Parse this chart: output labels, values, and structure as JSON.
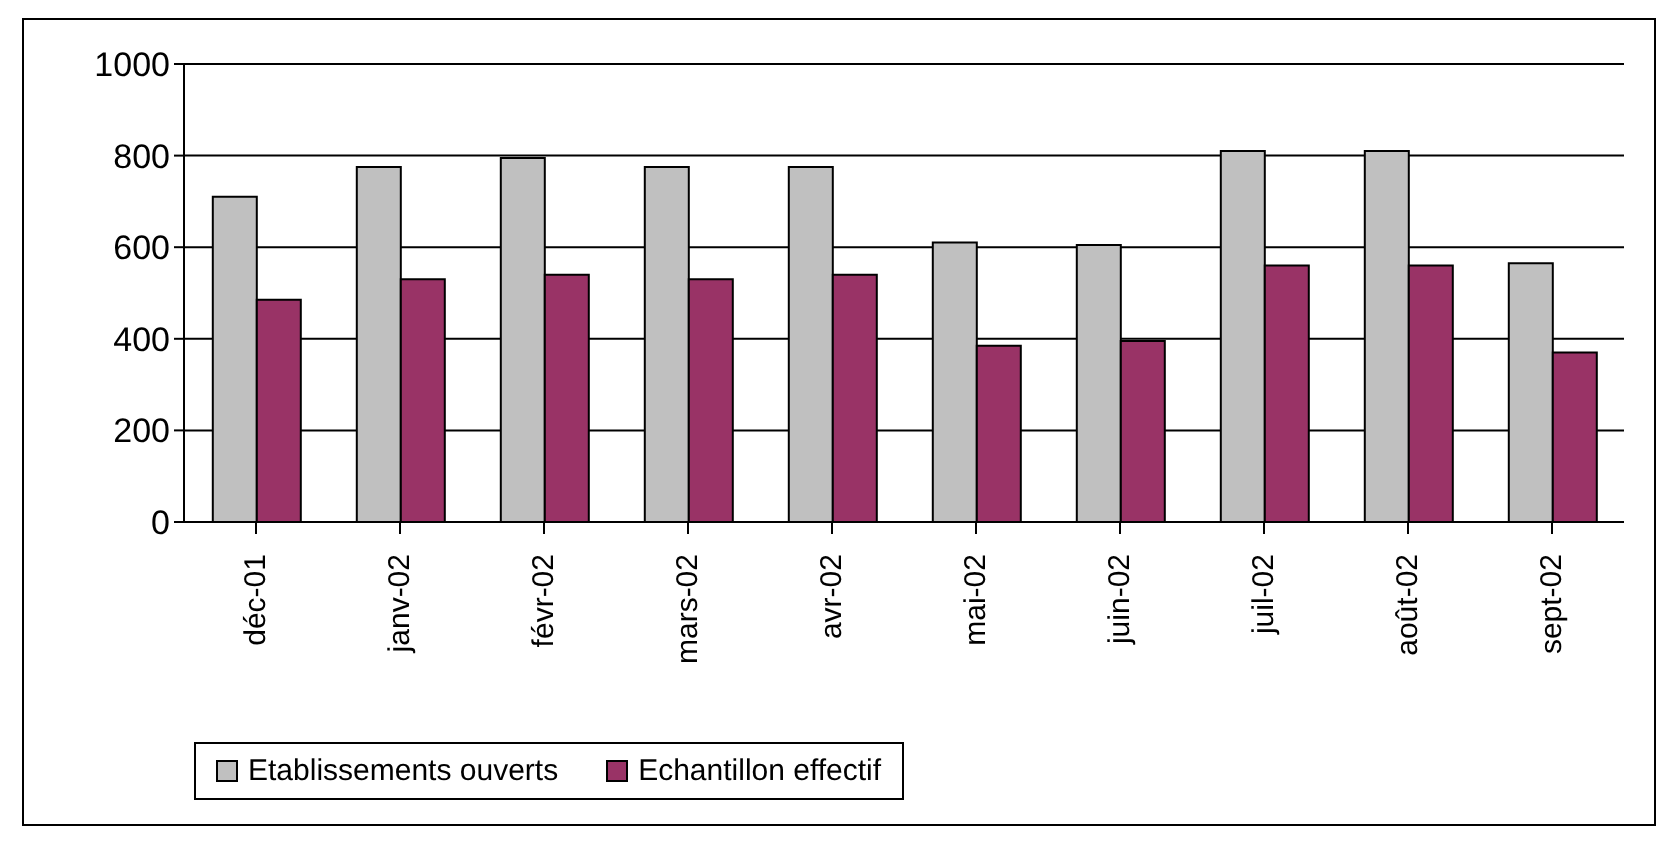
{
  "chart_data": {
    "type": "bar",
    "categories": [
      "déc-01",
      "janv-02",
      "févr-02",
      "mars-02",
      "avr-02",
      "mai-02",
      "juin-02",
      "juil-02",
      "août-02",
      "sept-02"
    ],
    "series": [
      {
        "name": "Etablissements ouverts",
        "color": "#c0c0c0",
        "values": [
          710,
          775,
          795,
          775,
          775,
          610,
          605,
          810,
          810,
          565
        ]
      },
      {
        "name": "Echantillon effectif",
        "color": "#993366",
        "values": [
          485,
          530,
          540,
          530,
          540,
          385,
          395,
          560,
          560,
          370
        ]
      }
    ],
    "ylim": [
      0,
      1000
    ],
    "yticks": [
      0,
      200,
      400,
      600,
      800,
      1000
    ],
    "grid": "y",
    "legend": "bottom"
  }
}
